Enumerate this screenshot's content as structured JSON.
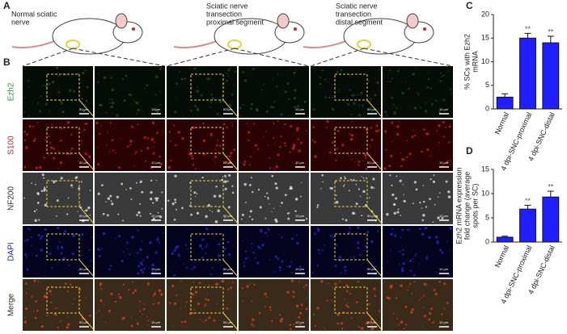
{
  "panels": {
    "a": "A",
    "b": "B",
    "c": "C",
    "d": "D"
  },
  "mice": [
    [
      "Normal sciatic",
      "nerve"
    ],
    [
      "Sciatic nerve",
      "transection",
      "proximal segment"
    ],
    [
      "Sciatic nerve",
      "transection",
      "distal segment"
    ]
  ],
  "rows": [
    "Ezh2",
    "S100",
    "NF200",
    "DAPI",
    "Merge"
  ],
  "scale_bars": [
    "50 μm",
    "10 μm"
  ],
  "chart_data": [
    {
      "type": "bar",
      "ylabel": [
        "% SCs with Ezh2",
        "mRNA"
      ],
      "categories": [
        "Normal",
        "4 dpi-SNC-proximal",
        "4 dpi-SNC-distal"
      ],
      "values": [
        2.5,
        15,
        14
      ],
      "errors": [
        0.7,
        1,
        1.4
      ],
      "annotations": [
        null,
        "**",
        "**"
      ],
      "color": "#1f1fff",
      "ylim": [
        0,
        20
      ],
      "yticks": [
        0,
        5,
        10,
        15,
        20
      ]
    },
    {
      "type": "bar",
      "ylabel": [
        "Ezh2 mRNA expression",
        "fold change (average",
        "spots per SC)"
      ],
      "categories": [
        "Normal",
        "4 dpi-SNC-proximal",
        "4 dpi-SNC-distal"
      ],
      "values": [
        1,
        6.8,
        9.3
      ],
      "errors": [
        0.2,
        0.8,
        1.2
      ],
      "annotations": [
        null,
        "**",
        "**"
      ],
      "color": "#1f1fff",
      "ylim": [
        0,
        15
      ],
      "yticks": [
        0,
        5,
        10,
        15
      ]
    }
  ]
}
